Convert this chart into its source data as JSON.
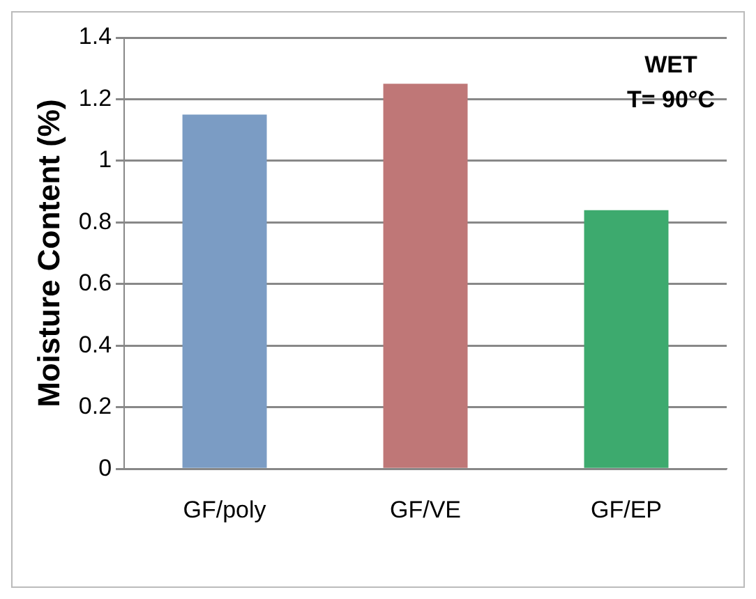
{
  "chart_data": {
    "type": "bar",
    "ylabel": "Moisture Content (%)",
    "categories": [
      "GF/poly",
      "GF/VE",
      "GF/EP"
    ],
    "values": [
      1.15,
      1.25,
      0.84
    ],
    "colors": [
      "#7b9cc4",
      "#bf7777",
      "#3daa6e"
    ],
    "ylim": [
      0,
      1.4
    ],
    "yticks": [
      0,
      0.2,
      0.4,
      0.6,
      0.8,
      1,
      1.2,
      1.4
    ],
    "grid": "y",
    "legend": false,
    "annotations": [
      "WET",
      "T= 90°C"
    ]
  }
}
